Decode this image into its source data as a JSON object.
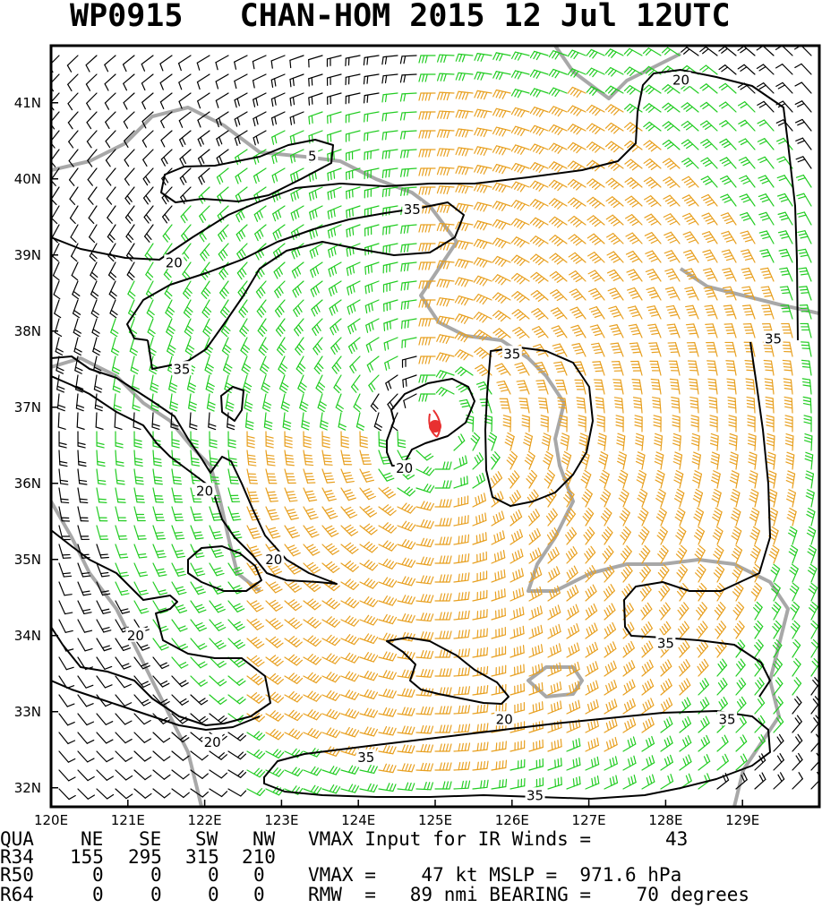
{
  "title": "WP0915   CHAN-HOM 2015 12 Jul 12UTC",
  "chart_data": {
    "type": "wind-barb map",
    "x_axis": {
      "range": [
        120,
        130
      ],
      "tick_labels": [
        "120E",
        "121E",
        "122E",
        "123E",
        "124E",
        "125E",
        "126E",
        "127E",
        "128E",
        "129E"
      ]
    },
    "y_axis": {
      "range": [
        31.75,
        41.75
      ],
      "tick_labels": [
        "32N",
        "33N",
        "34N",
        "35N",
        "36N",
        "37N",
        "38N",
        "39N",
        "40N",
        "41N"
      ]
    },
    "storm_center": {
      "lon": 125.0,
      "lat": 36.7
    },
    "wind_categories": [
      {
        "range": "< 20 kt",
        "color": "#000000"
      },
      {
        "range": "20-35 kt",
        "color": "#22cc22"
      },
      {
        "range": "> 35 kt",
        "color": "#e8a020"
      }
    ],
    "contours": [
      {
        "label": "5",
        "label_lon": 123.4,
        "label_lat": 40.3
      },
      {
        "label": "20",
        "label_lon": 121.6,
        "label_lat": 38.9
      },
      {
        "label": "20",
        "label_lon": 128.2,
        "label_lat": 41.3
      },
      {
        "label": "35",
        "label_lon": 124.7,
        "label_lat": 39.6
      },
      {
        "label": "35",
        "label_lon": 121.7,
        "label_lat": 37.5
      },
      {
        "label": "35",
        "label_lon": 126.0,
        "label_lat": 37.7
      },
      {
        "label": "35",
        "label_lon": 129.4,
        "label_lat": 37.9
      },
      {
        "label": "20",
        "label_lon": 124.6,
        "label_lat": 36.2
      },
      {
        "label": "20",
        "label_lon": 122.0,
        "label_lat": 35.9
      },
      {
        "label": "20",
        "label_lon": 122.9,
        "label_lat": 35.0
      },
      {
        "label": "20",
        "label_lon": 121.1,
        "label_lat": 34.0
      },
      {
        "label": "35",
        "label_lon": 128.0,
        "label_lat": 33.9
      },
      {
        "label": "20",
        "label_lon": 125.9,
        "label_lat": 32.9
      },
      {
        "label": "20",
        "label_lon": 122.1,
        "label_lat": 32.6
      },
      {
        "label": "35",
        "label_lon": 128.8,
        "label_lat": 32.9
      },
      {
        "label": "35",
        "label_lon": 124.1,
        "label_lat": 32.4
      },
      {
        "label": "35",
        "label_lon": 126.3,
        "label_lat": 31.9
      }
    ]
  },
  "info": {
    "header": [
      "QUA",
      "NE",
      "SE",
      "SW",
      "NW"
    ],
    "input_label": "VMAX Input for IR Winds =",
    "input_value": "43",
    "rows": [
      {
        "label": "R34",
        "values": [
          "155",
          "295",
          "315",
          "210"
        ]
      },
      {
        "label": "R50",
        "values": [
          "0",
          "0",
          "0",
          "0"
        ]
      },
      {
        "label": "R64",
        "values": [
          "0",
          "0",
          "0",
          "0"
        ]
      }
    ],
    "vmax_text": "VMAX =    47 kt MSLP =  971.6 hPa",
    "rmw_text": "RMW  =   89 nmi BEARING =    70 degrees"
  }
}
